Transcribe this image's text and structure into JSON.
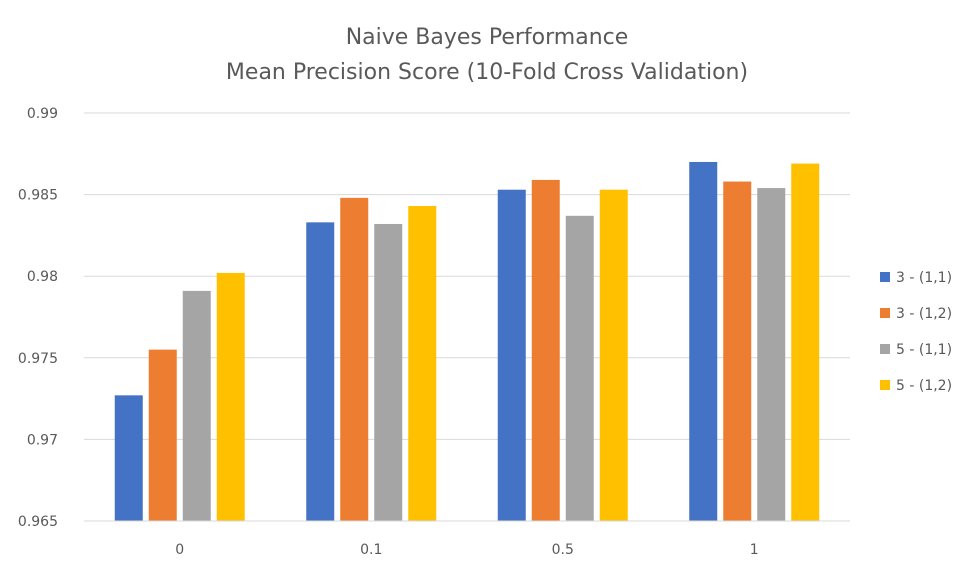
{
  "chart_data": {
    "type": "bar",
    "title": "Naive Bayes Performance",
    "subtitle": "Mean Precision Score (10-Fold Cross Validation)",
    "categories": [
      "0",
      "0.1",
      "0.5",
      "1"
    ],
    "series": [
      {
        "name": "3 - (1,1)",
        "color": "#4472c4",
        "values": [
          0.9727,
          0.9833,
          0.9853,
          0.987
        ]
      },
      {
        "name": "3 - (1,2)",
        "color": "#ed7d31",
        "values": [
          0.9755,
          0.9848,
          0.9859,
          0.9858
        ]
      },
      {
        "name": "5 - (1,1)",
        "color": "#a5a5a5",
        "values": [
          0.9791,
          0.9832,
          0.9837,
          0.9854
        ]
      },
      {
        "name": "5 - (1,2)",
        "color": "#ffc000",
        "values": [
          0.9802,
          0.9843,
          0.9853,
          0.9869
        ]
      }
    ],
    "ylim": [
      0.965,
      0.99
    ],
    "yticks": [
      "0.965",
      "0.97",
      "0.975",
      "0.98",
      "0.985",
      "0.99"
    ],
    "grid": true,
    "legend": "right"
  }
}
